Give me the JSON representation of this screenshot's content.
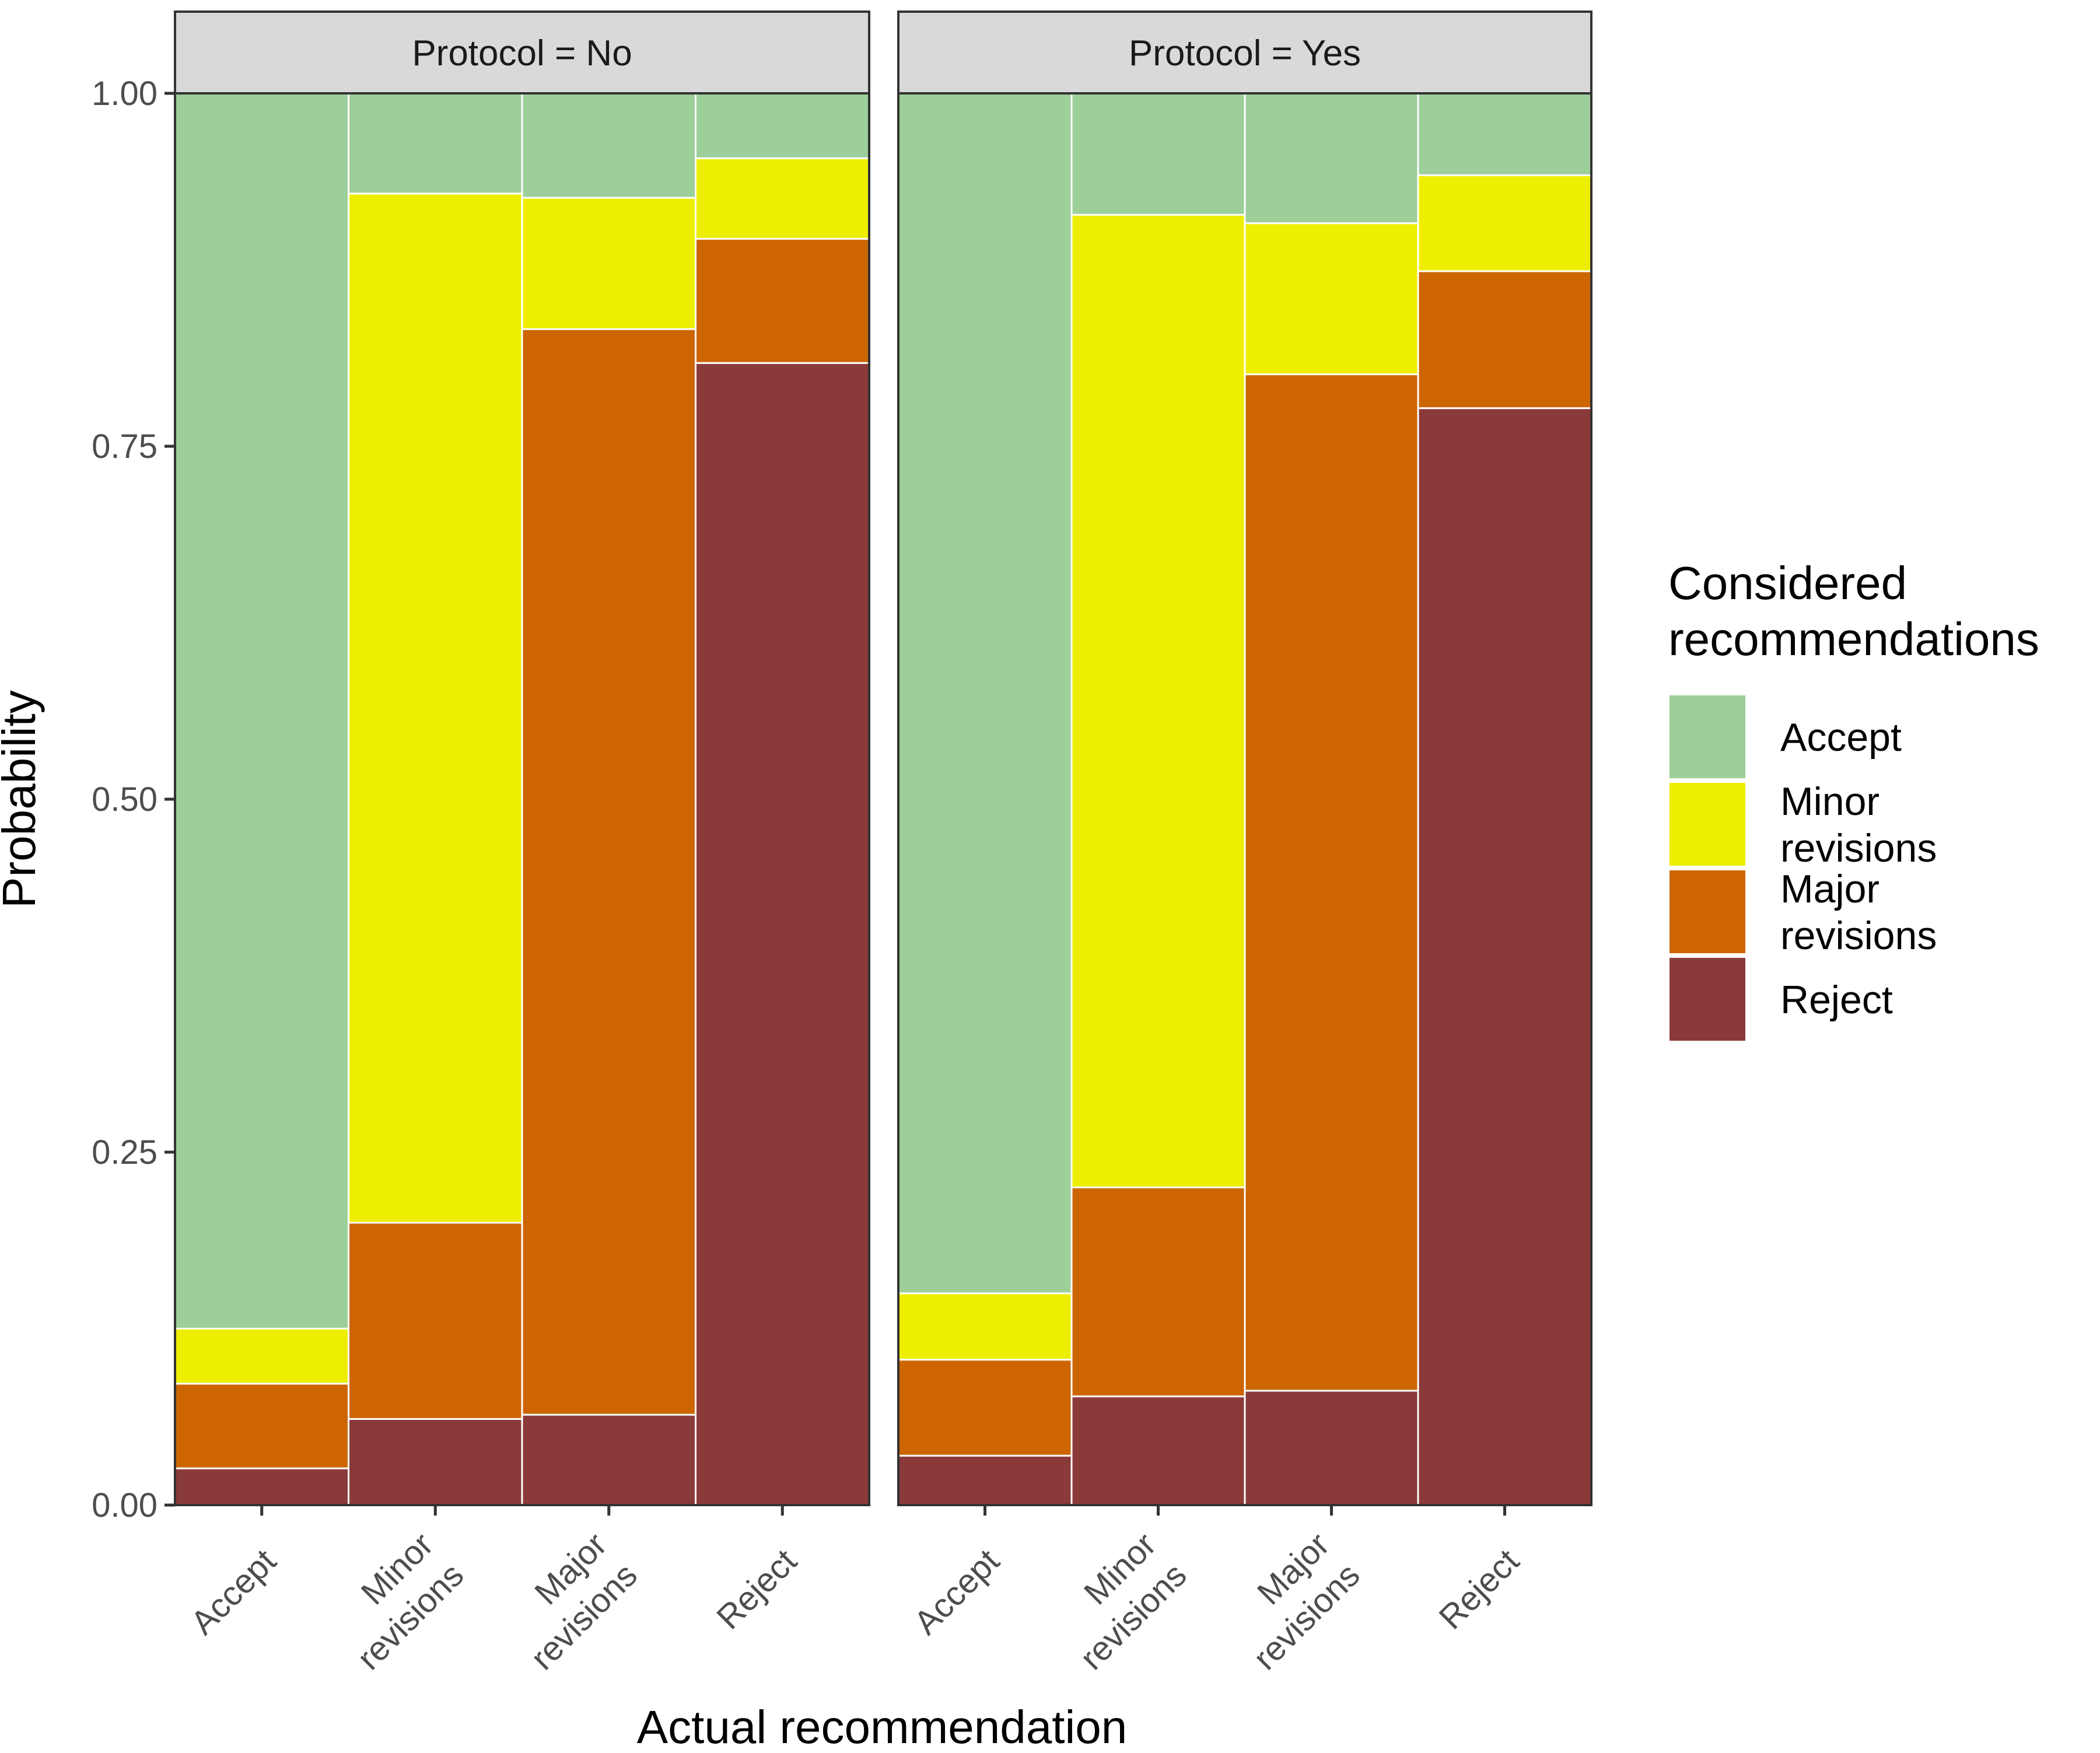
{
  "chart_data": {
    "type": "bar",
    "stacked": true,
    "xlabel": "Actual recommendation",
    "ylabel": "Probability",
    "ylim": [
      0,
      1
    ],
    "yticks": [
      "0.00",
      "0.25",
      "0.50",
      "0.75",
      "1.00"
    ],
    "grid": false,
    "categories": [
      [
        "Accept"
      ],
      [
        "Minor",
        "revisions"
      ],
      [
        "Major",
        "revisions"
      ],
      [
        "Reject"
      ]
    ],
    "legend": {
      "title": [
        "Considered",
        "recommendations"
      ],
      "placement": "right",
      "entries": [
        {
          "label": [
            "Accept"
          ],
          "color": "#9dcf9a"
        },
        {
          "label": [
            "Minor",
            "revisions"
          ],
          "color": "#eeee00"
        },
        {
          "label": [
            "Major",
            "revisions"
          ],
          "color": "#cd6600"
        },
        {
          "label": [
            "Reject"
          ],
          "color": "#8b3a3a"
        }
      ]
    },
    "panels": [
      {
        "strip": "Protocol = No",
        "series": [
          {
            "name": "Reject",
            "values": [
              0.026,
              0.061,
              0.064,
              0.809
            ]
          },
          {
            "name": "Major revisions",
            "values": [
              0.06,
              0.139,
              0.769,
              0.088
            ]
          },
          {
            "name": "Minor revisions",
            "values": [
              0.039,
              0.729,
              0.093,
              0.057
            ]
          },
          {
            "name": "Accept",
            "values": [
              0.875,
              0.071,
              0.074,
              0.046
            ]
          }
        ]
      },
      {
        "strip": "Protocol = Yes",
        "series": [
          {
            "name": "Reject",
            "values": [
              0.035,
              0.077,
              0.081,
              0.777
            ]
          },
          {
            "name": "Major revisions",
            "values": [
              0.068,
              0.148,
              0.72,
              0.097
            ]
          },
          {
            "name": "Minor revisions",
            "values": [
              0.047,
              0.689,
              0.107,
              0.068
            ]
          },
          {
            "name": "Accept",
            "values": [
              0.85,
              0.086,
              0.092,
              0.058
            ]
          }
        ]
      }
    ]
  }
}
